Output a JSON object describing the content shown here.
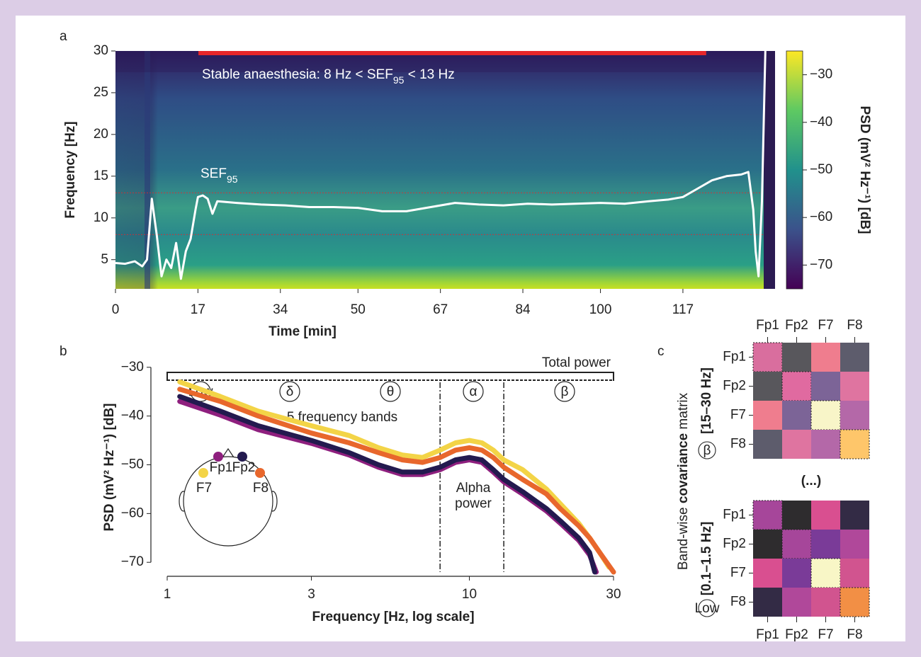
{
  "chart_data": [
    {
      "type": "spectrogram",
      "panel": "a",
      "x_label": "Time [min]",
      "y_label": "Frequency [Hz]",
      "xlim": [
        0,
        136
      ],
      "ylim": [
        1.5,
        30
      ],
      "xticks": [
        0,
        17,
        34,
        50,
        67,
        84,
        100,
        117
      ],
      "yticks": [
        5,
        10,
        15,
        20,
        25,
        30
      ],
      "annotation": [
        "Stable anaesthesia: 8 Hz < SEF",
        "95",
        " < 13 Hz"
      ],
      "stable_period": {
        "x": [
          17.1,
          121.8
        ],
        "color": "#e8262a"
      },
      "sef_bounds": [
        8,
        13
      ],
      "series": [
        {
          "name": "SEF",
          "name_subscript": "95",
          "color": "#ffffff",
          "x": [
            0,
            2,
            4,
            5.5,
            6.5,
            7.5,
            8.5,
            9.5,
            10.5,
            11.5,
            12.5,
            13.5,
            14.5,
            15.5,
            16.5,
            17,
            18,
            19,
            20,
            21,
            25,
            30,
            35,
            40,
            45,
            50,
            55,
            60,
            65,
            70,
            75,
            80,
            85,
            90,
            95,
            100,
            105,
            110,
            114,
            117,
            120,
            123,
            126,
            129,
            130.5,
            131.5,
            132,
            132.6,
            133.3,
            134
          ],
          "values": [
            4.6,
            4.5,
            4.8,
            4.2,
            5,
            12.3,
            8,
            3,
            5,
            4,
            7,
            2.7,
            6,
            7.5,
            11,
            12.5,
            12.7,
            12.3,
            10.5,
            12,
            11.8,
            11.6,
            11.5,
            11.3,
            11.3,
            11.2,
            10.8,
            10.8,
            11.3,
            11.8,
            11.6,
            11.5,
            11.7,
            11.6,
            11.7,
            11.8,
            11.7,
            12,
            12.2,
            12.5,
            13.5,
            14.5,
            15,
            15.2,
            15.5,
            11,
            6,
            3,
            12,
            30
          ]
        }
      ],
      "colorbar": {
        "label": "PSD (mV² Hz⁻¹) [dB]",
        "lim": [
          -75,
          -25
        ],
        "ticks": [
          {
            "value": -30,
            "label": "−30"
          },
          {
            "value": -40,
            "label": "−40"
          },
          {
            "value": -50,
            "label": "−50"
          },
          {
            "value": -60,
            "label": "−60"
          },
          {
            "value": -70,
            "label": "−70"
          }
        ],
        "colormap": [
          "#440154",
          "#3b528b",
          "#21918c",
          "#5ec962",
          "#fde725"
        ]
      }
    },
    {
      "type": "line",
      "panel": "b",
      "log_x": true,
      "x_label": "Frequency [Hz, log scale]",
      "y_label": "PSD (mV² Hz⁻¹) [dB]",
      "xlim": [
        0.9,
        35
      ],
      "ylim": [
        -72,
        -28
      ],
      "xticks": [
        1,
        3,
        10,
        30
      ],
      "yticks": [
        {
          "value": -30,
          "label": "−30"
        },
        {
          "value": -40,
          "label": "−40"
        },
        {
          "value": -50,
          "label": "−50"
        },
        {
          "value": -60,
          "label": "−60"
        },
        {
          "value": -70,
          "label": "−70"
        }
      ],
      "total_power_label": "Total power",
      "bands_label": "5 frequency bands",
      "alpha_label": [
        "Alpha",
        "power"
      ],
      "band_symbols": [
        "Low",
        "δ",
        "θ",
        "α",
        "β"
      ],
      "alpha_edges": [
        8,
        13
      ],
      "series": [
        {
          "name": "F7",
          "color": "#f3d447",
          "x": [
            1.1,
            1.5,
            2,
            3,
            4,
            5,
            6,
            7,
            8,
            9,
            10,
            11,
            12,
            13,
            15,
            18,
            20,
            23,
            25,
            27,
            29
          ],
          "values": [
            -33,
            -36,
            -39,
            -42,
            -44,
            -46.5,
            -48,
            -48.5,
            -47,
            -45.5,
            -45,
            -45.5,
            -47,
            -49,
            -51,
            -55,
            -58,
            -62,
            -65,
            -68,
            -71
          ]
        },
        {
          "name": "F8",
          "color": "#e8672c",
          "x": [
            1.1,
            1.5,
            2,
            3,
            4,
            5,
            6,
            7,
            8,
            9,
            10,
            11,
            12,
            13,
            15,
            18,
            20,
            23,
            25,
            27,
            30
          ],
          "values": [
            -34.5,
            -37,
            -40,
            -43.5,
            -45.5,
            -47.5,
            -49,
            -49.5,
            -48.5,
            -47,
            -46.5,
            -47,
            -48.5,
            -50.5,
            -53,
            -56,
            -59,
            -62.5,
            -65,
            -68,
            -72
          ]
        },
        {
          "name": "Fp1",
          "color": "#8e1f7e",
          "x": [
            1.1,
            1.5,
            2,
            3,
            4,
            5,
            6,
            7,
            8,
            9,
            10,
            11,
            12,
            13,
            15,
            18,
            20,
            23,
            25,
            26.3
          ],
          "values": [
            -37,
            -39.8,
            -42.8,
            -45.6,
            -48,
            -50.5,
            -52,
            -52,
            -51,
            -49.5,
            -49,
            -49.5,
            -51.5,
            -53.5,
            -56,
            -59.5,
            -62,
            -65.5,
            -68.5,
            -72
          ]
        },
        {
          "name": "Fp2",
          "color": "#231a4f",
          "x": [
            1.1,
            1.5,
            2,
            3,
            4,
            5,
            6,
            7,
            8,
            9,
            10,
            11,
            12,
            13,
            15,
            18,
            20,
            23,
            25,
            26
          ],
          "values": [
            -36,
            -39,
            -42,
            -45,
            -47.5,
            -50,
            -51.5,
            -51.5,
            -50.5,
            -49,
            -48.5,
            -49,
            -51,
            -53,
            -55.5,
            -59,
            -61.5,
            -65,
            -68,
            -72
          ]
        }
      ]
    },
    {
      "type": "heatmap",
      "panel": "c",
      "title": [
        "Band-wise ",
        "covariance",
        " matrix"
      ],
      "labels": [
        "Fp1",
        "Fp2",
        "F7",
        "F8"
      ],
      "ellipsis": "(...)",
      "matrices": [
        {
          "band_symbol": "β",
          "range": "[15–30 Hz]",
          "colors": [
            [
              "#d96e9e",
              "#58575c",
              "#ef7d8e",
              "#5d5c6c"
            ],
            [
              "#58575c",
              "#e06aa0",
              "#7c6497",
              "#df74a0"
            ],
            [
              "#ef7d8e",
              "#7c6497",
              "#f8f5c8",
              "#b468a8"
            ],
            [
              "#5d5c6c",
              "#df74a0",
              "#b468a8",
              "#fec66a"
            ]
          ]
        },
        {
          "band_symbol": "Low",
          "range": "[0.1–1.5 Hz]",
          "colors": [
            [
              "#a6469a",
              "#2e2c2e",
              "#d94f90",
              "#332b45"
            ],
            [
              "#2e2c2e",
              "#a6469a",
              "#7a3b98",
              "#b0489a"
            ],
            [
              "#d94f90",
              "#7a3b98",
              "#f8f6c6",
              "#d1548f"
            ],
            [
              "#332b45",
              "#b0489a",
              "#d1548f",
              "#f28f45"
            ]
          ]
        }
      ]
    }
  ]
}
